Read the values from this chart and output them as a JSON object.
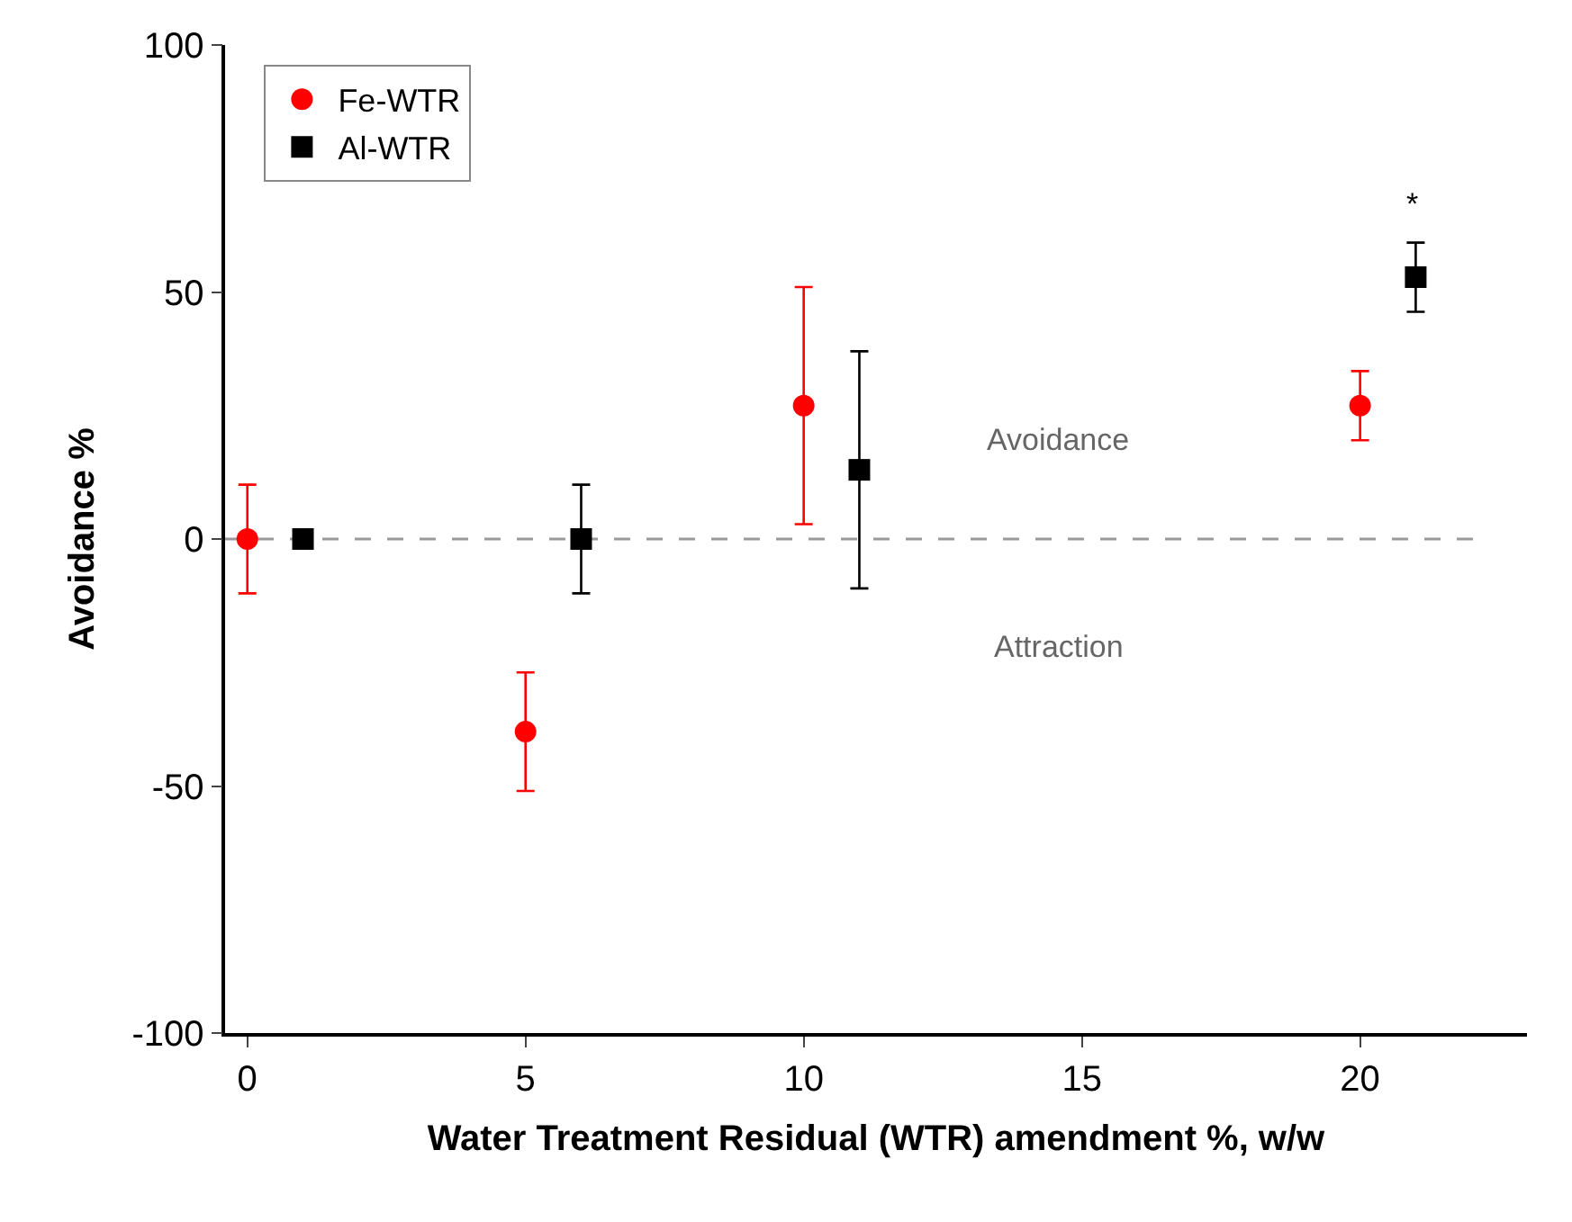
{
  "chart_data": {
    "type": "scatter",
    "xlabel": "Water Treatment Residual (WTR) amendment %, w/w",
    "ylabel": "Avoidance %",
    "xlim": [
      -0.4,
      23
    ],
    "xticks": [
      0,
      5,
      10,
      15,
      20
    ],
    "ylim": [
      -100,
      100
    ],
    "yticks": [
      -100,
      -50,
      0,
      50,
      100
    ],
    "grid": false,
    "legend": "top left",
    "series": [
      {
        "name": "Fe-WTR",
        "color": "#ff0000",
        "marker": "circle",
        "x": [
          0,
          5,
          10,
          20
        ],
        "values": [
          0,
          -39,
          27,
          27
        ],
        "errors": [
          11,
          12,
          24,
          7
        ]
      },
      {
        "name": "Al-WTR",
        "color": "#000000",
        "marker": "square",
        "x": [
          1,
          6,
          11,
          21
        ],
        "values": [
          0,
          0,
          14,
          53
        ],
        "errors": [
          null,
          11,
          24,
          7
        ]
      }
    ],
    "ref_lines": [
      {
        "axis": "y",
        "value": 0,
        "color": "#999999",
        "line_style": "dashed"
      }
    ],
    "annotations": [
      "Avoidance",
      "Attraction",
      "*"
    ]
  }
}
